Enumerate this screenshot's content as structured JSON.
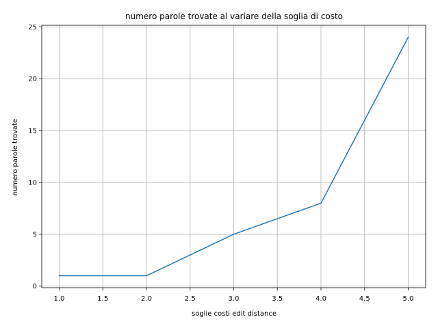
{
  "chart_data": {
    "type": "line",
    "title": "numero parole trovate al variare della soglia di costo",
    "xlabel": "soglie costi edit distance",
    "ylabel": "numero parole trovate",
    "x": [
      1.0,
      2.0,
      3.0,
      4.0,
      5.0
    ],
    "series": [
      {
        "values": [
          1,
          1,
          5,
          8,
          24
        ],
        "color": "#1f77b4"
      }
    ],
    "xlim": [
      0.8,
      5.2
    ],
    "ylim": [
      -0.15,
      25.15
    ],
    "xticks": [
      "1.0",
      "1.5",
      "2.0",
      "2.5",
      "3.0",
      "3.5",
      "4.0",
      "4.5",
      "5.0"
    ],
    "yticks": [
      "0",
      "5",
      "10",
      "15",
      "20",
      "25"
    ],
    "grid": true,
    "legend": "none"
  }
}
